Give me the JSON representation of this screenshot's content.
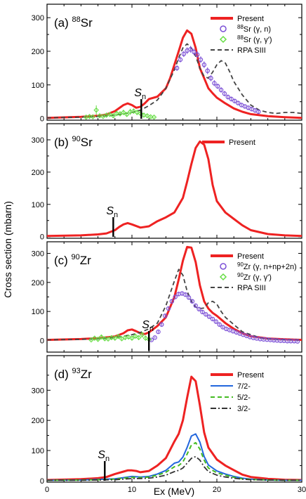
{
  "figure": {
    "xlabel": "Ex (MeV)",
    "ylabel": "Cross section (mbarn)",
    "xticks": [
      "0",
      "10",
      "20",
      "30"
    ],
    "colors": {
      "present": "#ee2222",
      "exp_gn": "#7b4fd6",
      "exp_gg": "#66dd44",
      "rpa": "#444444",
      "j72": "#2266dd",
      "j52": "#44bb22",
      "j32": "#333333"
    }
  },
  "chart_data": [
    {
      "type": "line",
      "panel": "a",
      "title": "(a) 88Sr",
      "title_prefix": "(a)",
      "title_mass": "88",
      "title_element": "Sr",
      "xlim": [
        0,
        30
      ],
      "ylim": [
        -5,
        340
      ],
      "yticks": [
        "0",
        "100",
        "200",
        "300"
      ],
      "sn": {
        "x": 11.1,
        "label": "S",
        "sub": "n"
      },
      "legend": [
        {
          "key": "present",
          "text": "Present",
          "style": "line"
        },
        {
          "key": "exp_gn",
          "mass": "88",
          "text": "Sr (γ, n)",
          "style": "circle"
        },
        {
          "key": "exp_gg",
          "mass": "88",
          "text": "Sr (γ, γ')",
          "style": "diamond"
        },
        {
          "key": "rpa",
          "text": "RPA SIII",
          "style": "dash"
        }
      ],
      "series": [
        {
          "key": "present",
          "x": [
            0,
            4,
            6,
            7,
            8,
            9,
            9.5,
            10,
            10.5,
            11,
            11.5,
            12,
            13,
            14,
            14.5,
            15,
            15.5,
            16,
            16.5,
            17,
            17.5,
            18,
            18.5,
            19,
            19.5,
            20,
            21,
            22,
            23,
            24,
            26,
            28,
            30
          ],
          "y": [
            2,
            5,
            8,
            12,
            22,
            40,
            45,
            40,
            32,
            35,
            45,
            58,
            65,
            90,
            120,
            160,
            200,
            240,
            262,
            252,
            210,
            150,
            120,
            90,
            75,
            62,
            45,
            30,
            20,
            13,
            7,
            4,
            2
          ]
        },
        {
          "key": "rpa",
          "x": [
            0,
            4,
            6,
            8,
            10,
            11,
            12,
            13,
            14,
            15,
            15.5,
            16,
            16.5,
            17,
            17.5,
            18,
            18.5,
            19,
            19.5,
            20,
            20.5,
            21,
            21.5,
            22,
            23,
            24,
            25,
            26,
            27,
            28,
            29,
            30
          ],
          "y": [
            2,
            4,
            6,
            10,
            18,
            25,
            38,
            55,
            90,
            145,
            180,
            210,
            222,
            210,
            185,
            150,
            125,
            120,
            138,
            160,
            172,
            165,
            140,
            110,
            70,
            40,
            25,
            18,
            15,
            18,
            18,
            15
          ]
        },
        {
          "key": "exp_gn",
          "x": [
            15.3,
            15.7,
            16.1,
            16.5,
            16.9,
            17.3,
            17.7,
            18.1,
            18.5,
            18.9,
            19.3,
            19.7,
            20.1,
            20.5,
            20.9,
            21.3,
            21.7,
            22.1,
            22.5,
            22.9,
            23.3,
            23.7,
            24.1,
            24.5,
            24.9
          ],
          "y": [
            150,
            175,
            192,
            202,
            206,
            198,
            190,
            175,
            160,
            142,
            120,
            105,
            96,
            85,
            74,
            64,
            58,
            52,
            46,
            40,
            36,
            32,
            28,
            24,
            20
          ],
          "err": [
            8,
            8,
            9,
            10,
            10,
            10,
            10,
            10,
            10,
            10,
            9,
            9,
            8,
            8,
            8,
            7,
            7,
            6,
            6,
            6,
            6,
            5,
            5,
            5,
            5
          ]
        },
        {
          "key": "exp_gg",
          "x": [
            4.6,
            5.0,
            5.4,
            5.8,
            6.2,
            6.6,
            7.0,
            7.4,
            7.8,
            8.2,
            8.6,
            9.0,
            9.4,
            9.8,
            10.2,
            10.6,
            11.0,
            11.4,
            11.8,
            12.2,
            12.6
          ],
          "y": [
            4,
            6,
            5,
            25,
            8,
            6,
            10,
            12,
            8,
            15,
            14,
            18,
            12,
            20,
            22,
            18,
            15,
            10,
            8,
            5,
            4
          ],
          "err": [
            3,
            4,
            3,
            14,
            4,
            3,
            5,
            6,
            4,
            8,
            6,
            8,
            6,
            9,
            8,
            8,
            6,
            4,
            4,
            3,
            2
          ]
        }
      ]
    },
    {
      "type": "line",
      "panel": "b",
      "title": "(b) 90Sr",
      "title_prefix": "(b)",
      "title_mass": "90",
      "title_element": "Sr",
      "xlim": [
        0,
        30
      ],
      "ylim": [
        -5,
        350
      ],
      "yticks": [
        "0",
        "100",
        "200",
        "300"
      ],
      "sn": {
        "x": 7.8,
        "label": "S",
        "sub": "n"
      },
      "legend": [
        {
          "key": "present",
          "text": "Present",
          "style": "line"
        }
      ],
      "series": [
        {
          "key": "present",
          "x": [
            0,
            4,
            6,
            7,
            8,
            8.5,
            9,
            9.5,
            10,
            11,
            12,
            13,
            14,
            15,
            16,
            16.5,
            17,
            17.5,
            18,
            18.5,
            19,
            19.5,
            20,
            21,
            22,
            23,
            24,
            26,
            28,
            30
          ],
          "y": [
            2,
            4,
            7,
            10,
            20,
            30,
            38,
            42,
            38,
            28,
            32,
            48,
            60,
            75,
            120,
            170,
            225,
            275,
            295,
            285,
            240,
            160,
            110,
            75,
            55,
            35,
            20,
            8,
            4,
            2
          ]
        }
      ]
    },
    {
      "type": "line",
      "panel": "c",
      "title": "(c) 90Zr",
      "title_prefix": "(c)",
      "title_mass": "90",
      "title_element": "Zr",
      "xlim": [
        0,
        30
      ],
      "ylim": [
        -40,
        340
      ],
      "yticks": [
        "0",
        "100",
        "200",
        "300"
      ],
      "sn": {
        "x": 12.0,
        "label": "S",
        "sub": "n"
      },
      "legend": [
        {
          "key": "present",
          "text": "Present",
          "style": "line"
        },
        {
          "key": "exp_gn",
          "mass": "90",
          "text": "Zr (γ, n+np+2n)",
          "style": "circle"
        },
        {
          "key": "exp_gg",
          "mass": "90",
          "text": "Zr (γ, γ')",
          "style": "diamond"
        },
        {
          "key": "rpa",
          "text": "RPA SIII",
          "style": "dash"
        }
      ],
      "series": [
        {
          "key": "present",
          "x": [
            0,
            4,
            6,
            8,
            9,
            9.5,
            10,
            10.5,
            11,
            11.5,
            12,
            13,
            14,
            15,
            15.5,
            16,
            16.5,
            17,
            17.5,
            18,
            18.5,
            19,
            19.5,
            20,
            21,
            22,
            23,
            24,
            26,
            28,
            30
          ],
          "y": [
            2,
            5,
            8,
            14,
            25,
            35,
            38,
            32,
            25,
            22,
            28,
            50,
            80,
            150,
            210,
            275,
            322,
            320,
            270,
            190,
            135,
            110,
            95,
            85,
            60,
            40,
            25,
            15,
            7,
            4,
            2
          ]
        },
        {
          "key": "rpa",
          "x": [
            0,
            4,
            6,
            8,
            10,
            11,
            12,
            13,
            14,
            15,
            15.5,
            16,
            16.5,
            17,
            17.5,
            18,
            18.5,
            19,
            19.5,
            20,
            20.5,
            21,
            22,
            23,
            24,
            25,
            26,
            28,
            30
          ],
          "y": [
            2,
            4,
            6,
            10,
            20,
            28,
            40,
            60,
            120,
            205,
            245,
            225,
            170,
            135,
            115,
            110,
            112,
            130,
            135,
            125,
            100,
            80,
            55,
            30,
            20,
            10,
            6,
            3,
            2
          ]
        },
        {
          "key": "exp_gn",
          "x": [
            12.3,
            12.7,
            13.1,
            13.5,
            13.9,
            14.3,
            14.7,
            15.1,
            15.5,
            15.9,
            16.3,
            16.7,
            17.1,
            17.5,
            17.9,
            18.3,
            18.7,
            19.1,
            19.5,
            19.9,
            20.3,
            20.7,
            21.1,
            21.5,
            21.9,
            22.3,
            22.7,
            23.1,
            23.5,
            23.9,
            24.3,
            24.7,
            25.1,
            25.5,
            25.9,
            26.3,
            26.7,
            27.1,
            27.5,
            27.9,
            28.3,
            28.7,
            29.1,
            29.5
          ],
          "y": [
            2,
            10,
            30,
            55,
            85,
            110,
            135,
            150,
            160,
            162,
            158,
            148,
            135,
            120,
            108,
            98,
            90,
            82,
            74,
            65,
            55,
            46,
            40,
            36,
            32,
            28,
            24,
            20,
            16,
            12,
            9,
            7,
            5,
            4,
            3,
            2,
            1,
            0,
            -1,
            -1,
            -2,
            -2,
            -2,
            -3
          ],
          "err": [
            3,
            3,
            4,
            5,
            6,
            6,
            7,
            7,
            7,
            7,
            7,
            7,
            6,
            6,
            6,
            6,
            5,
            5,
            5,
            5,
            5,
            4,
            4,
            4,
            4,
            4,
            3,
            3,
            3,
            3,
            3,
            3,
            3,
            3,
            3,
            3,
            3,
            3,
            3,
            3,
            3,
            3,
            3,
            3
          ]
        },
        {
          "key": "exp_gg",
          "x": [
            5.2,
            5.6,
            6.0,
            6.4,
            6.8,
            7.2,
            7.6,
            8.0,
            8.4,
            8.8,
            9.2,
            9.6,
            10.0,
            10.4,
            10.8,
            11.2,
            11.6,
            12.0
          ],
          "y": [
            2,
            8,
            4,
            12,
            6,
            5,
            10,
            8,
            14,
            6,
            10,
            12,
            8,
            15,
            10,
            20,
            8,
            4
          ],
          "err": [
            3,
            6,
            4,
            8,
            5,
            4,
            6,
            5,
            8,
            4,
            6,
            7,
            5,
            8,
            6,
            10,
            5,
            3
          ]
        }
      ]
    },
    {
      "type": "line",
      "panel": "d",
      "title": "(d) 93Zr",
      "title_prefix": "(d)",
      "title_mass": "93",
      "title_element": "Zr",
      "xlim": [
        0,
        30
      ],
      "ylim": [
        -5,
        415
      ],
      "yticks": [
        "0",
        "100",
        "200",
        "300"
      ],
      "sn": {
        "x": 6.8,
        "label": "S",
        "sub": "n"
      },
      "legend": [
        {
          "key": "present",
          "text": "Present",
          "style": "line"
        },
        {
          "key": "j72",
          "text": "7/2-",
          "style": "line"
        },
        {
          "key": "j52",
          "text": "5/2-",
          "style": "dash"
        },
        {
          "key": "j32",
          "text": "3/2-",
          "style": "dashdot"
        }
      ],
      "series": [
        {
          "key": "present",
          "x": [
            0,
            4,
            6,
            7,
            8,
            9,
            9.5,
            10,
            10.5,
            11,
            12,
            13,
            14,
            15,
            15.5,
            16,
            16.5,
            17,
            17.5,
            18,
            18.5,
            19,
            20,
            21,
            22,
            23,
            24,
            26,
            28,
            30
          ],
          "y": [
            2,
            5,
            8,
            12,
            22,
            30,
            34,
            34,
            32,
            28,
            32,
            50,
            75,
            130,
            155,
            200,
            275,
            345,
            330,
            250,
            160,
            110,
            70,
            50,
            35,
            20,
            12,
            6,
            3,
            2
          ]
        },
        {
          "key": "j72",
          "x": [
            0,
            4,
            6,
            8,
            9,
            10,
            11,
            12,
            13,
            14,
            15,
            15.5,
            16,
            16.5,
            17,
            17.5,
            18,
            18.5,
            19,
            20,
            21,
            22,
            23,
            24,
            26,
            28,
            30
          ],
          "y": [
            1,
            2,
            4,
            6,
            10,
            14,
            12,
            14,
            22,
            34,
            58,
            62,
            78,
            110,
            148,
            155,
            128,
            80,
            52,
            32,
            22,
            14,
            8,
            5,
            2,
            1,
            1
          ]
        },
        {
          "key": "j52",
          "x": [
            0,
            4,
            6,
            8,
            9,
            10,
            11,
            12,
            13,
            14,
            15,
            15.5,
            16,
            16.5,
            17,
            17.5,
            18,
            18.5,
            19,
            20,
            21,
            22,
            23,
            24,
            26,
            28,
            30
          ],
          "y": [
            1,
            2,
            3,
            5,
            8,
            11,
            10,
            12,
            18,
            28,
            46,
            50,
            62,
            88,
            118,
            126,
            105,
            68,
            42,
            26,
            18,
            11,
            6,
            4,
            2,
            1,
            1
          ]
        },
        {
          "key": "j32",
          "x": [
            0,
            4,
            6,
            8,
            9,
            10,
            11,
            12,
            13,
            14,
            15,
            15.5,
            16,
            16.5,
            17,
            17.5,
            18,
            18.5,
            19,
            20,
            21,
            22,
            23,
            24,
            26,
            28,
            30
          ],
          "y": [
            1,
            1,
            2,
            3,
            5,
            7,
            7,
            8,
            12,
            18,
            30,
            34,
            42,
            58,
            74,
            80,
            68,
            46,
            30,
            18,
            12,
            8,
            5,
            3,
            2,
            1,
            1
          ]
        }
      ]
    }
  ]
}
